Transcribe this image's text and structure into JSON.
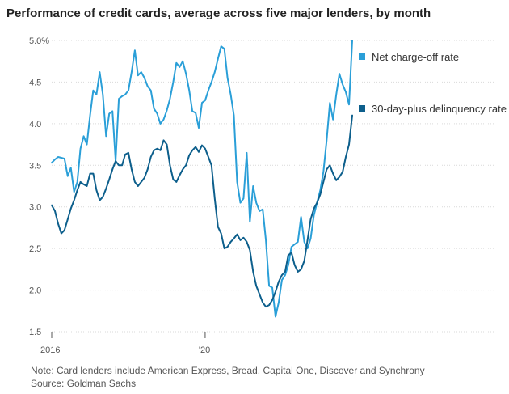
{
  "chart_data": {
    "type": "line",
    "title": "Performance of credit cards, average across five major lenders, by month",
    "xlabel": "",
    "ylabel": "",
    "x_tick_labels": [
      "2016",
      "'20"
    ],
    "y_tick_labels": [
      "1.5",
      "2.0",
      "2.5",
      "3.0",
      "3.5",
      "4.0",
      "4.5",
      "5.0%"
    ],
    "y_ticks": [
      1.5,
      2.0,
      2.5,
      3.0,
      3.5,
      4.0,
      4.5,
      5.0
    ],
    "ylim": [
      1.5,
      5.0
    ],
    "x_ticks_months": [
      0,
      48
    ],
    "xlim_months": [
      0,
      93
    ],
    "grid": true,
    "legend_placement": "right",
    "series": [
      {
        "name": "Net charge-off rate",
        "color": "#2a9fd8",
        "values": [
          3.53,
          3.57,
          3.6,
          3.59,
          3.58,
          3.37,
          3.47,
          3.18,
          3.3,
          3.7,
          3.85,
          3.75,
          4.1,
          4.4,
          4.35,
          4.62,
          4.35,
          3.85,
          4.12,
          4.15,
          3.55,
          4.3,
          4.33,
          4.35,
          4.4,
          4.62,
          4.88,
          4.58,
          4.62,
          4.55,
          4.45,
          4.4,
          4.18,
          4.12,
          4.0,
          4.05,
          4.16,
          4.3,
          4.5,
          4.73,
          4.68,
          4.75,
          4.6,
          4.4,
          4.15,
          4.13,
          3.95,
          4.25,
          4.28,
          4.4,
          4.5,
          4.62,
          4.78,
          4.93,
          4.9,
          4.55,
          4.35,
          4.1,
          3.3,
          3.05,
          3.1,
          3.65,
          2.82,
          3.25,
          3.05,
          2.95,
          2.97,
          2.6,
          2.05,
          2.03,
          1.68,
          1.85,
          2.12,
          2.18,
          2.3,
          2.52,
          2.55,
          2.58,
          2.88,
          2.58,
          2.5,
          2.62,
          2.9,
          3.05,
          3.2,
          3.42,
          3.8,
          4.25,
          4.05,
          4.35,
          4.6,
          4.47,
          4.38,
          4.23,
          5.0
        ]
      },
      {
        "name": "30-day-plus delinquency rate",
        "color": "#0d5f8c",
        "values": [
          3.02,
          2.95,
          2.8,
          2.68,
          2.72,
          2.85,
          2.98,
          3.08,
          3.2,
          3.3,
          3.27,
          3.25,
          3.4,
          3.4,
          3.2,
          3.08,
          3.12,
          3.22,
          3.33,
          3.45,
          3.55,
          3.5,
          3.5,
          3.63,
          3.65,
          3.45,
          3.3,
          3.25,
          3.3,
          3.35,
          3.45,
          3.6,
          3.68,
          3.7,
          3.68,
          3.8,
          3.75,
          3.5,
          3.33,
          3.3,
          3.38,
          3.45,
          3.5,
          3.62,
          3.68,
          3.72,
          3.66,
          3.74,
          3.7,
          3.6,
          3.5,
          3.1,
          2.76,
          2.68,
          2.5,
          2.52,
          2.58,
          2.62,
          2.67,
          2.6,
          2.63,
          2.58,
          2.48,
          2.22,
          2.05,
          1.95,
          1.85,
          1.8,
          1.82,
          1.88,
          1.98,
          2.1,
          2.18,
          2.22,
          2.42,
          2.45,
          2.3,
          2.22,
          2.25,
          2.35,
          2.6,
          2.85,
          2.98,
          3.05,
          3.15,
          3.3,
          3.45,
          3.5,
          3.4,
          3.32,
          3.36,
          3.42,
          3.6,
          3.75,
          4.1
        ]
      }
    ],
    "note": "Note: Card lenders include American Express, Bread, Capital One, Discover and Synchrony",
    "source": "Source: Goldman Sachs"
  }
}
